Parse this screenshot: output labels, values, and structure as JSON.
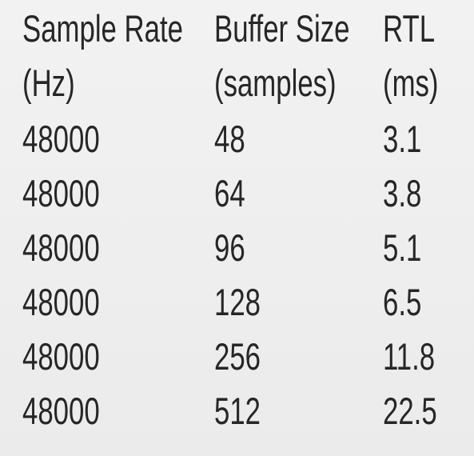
{
  "table": {
    "header": [
      [
        "Sample Rate",
        "(Hz)"
      ],
      [
        "Buffer Size",
        "(samples)"
      ],
      [
        "RTL",
        "(ms)"
      ]
    ],
    "rows": [
      [
        48000,
        48,
        3.1
      ],
      [
        48000,
        64,
        3.8
      ],
      [
        48000,
        96,
        5.1
      ],
      [
        48000,
        128,
        6.5
      ],
      [
        48000,
        256,
        11.8
      ],
      [
        48000,
        512,
        22.5
      ]
    ]
  }
}
